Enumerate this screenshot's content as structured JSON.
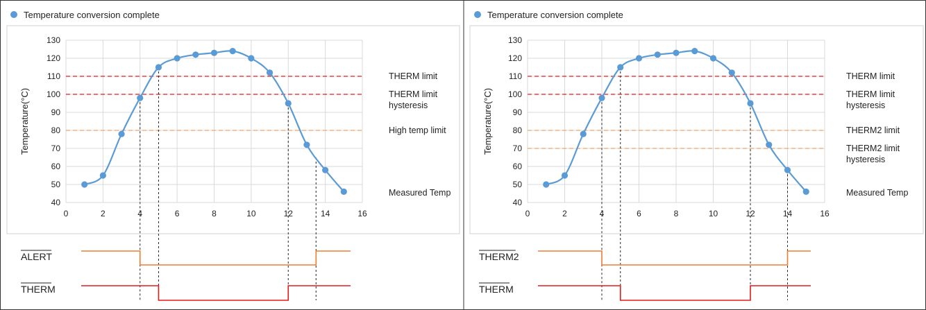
{
  "colors": {
    "series": "#5b9bd5",
    "therm_limit": "#e31a1c",
    "second_limit": "#f4a460",
    "alert_signal": "#ed7d31",
    "therm_signal": "#e31a1c",
    "grid": "#d9d9d9",
    "frame": "#333333"
  },
  "chart_data": [
    {
      "type": "scatter",
      "legend": "Temperature conversion complete",
      "ylabel": "Temperature(°C)",
      "xlim": [
        0,
        16
      ],
      "ylim": [
        40,
        130
      ],
      "xticks": [
        "0",
        "2",
        "4",
        "6",
        "8",
        "10",
        "12",
        "14",
        "16"
      ],
      "yticks": [
        "40",
        "50",
        "60",
        "70",
        "80",
        "90",
        "100",
        "110",
        "120",
        "130"
      ],
      "series": [
        {
          "name": "Measured Temp",
          "x": [
            1,
            2,
            3,
            4,
            5,
            6,
            7,
            8,
            9,
            10,
            11,
            12,
            13,
            14,
            15
          ],
          "y": [
            50,
            55,
            78,
            98,
            115,
            120,
            122,
            123,
            124,
            120,
            112,
            95,
            72,
            58,
            46
          ]
        }
      ],
      "reference_lines": [
        {
          "label": "THERM limit",
          "y": 110,
          "color": "#e31a1c"
        },
        {
          "label": "THERM limit\nhysteresis",
          "y": 100,
          "color": "#e31a1c"
        },
        {
          "label": "High temp limit",
          "y": 80,
          "color": "#f4a460"
        }
      ],
      "guide_x": [
        4,
        5,
        12,
        13.5
      ],
      "signals": [
        {
          "label": "ALERT",
          "low_from": 4,
          "low_to": 13.5,
          "color": "#ed7d31"
        },
        {
          "label": "THERM",
          "low_from": 5,
          "low_to": 12,
          "color": "#e31a1c"
        }
      ]
    },
    {
      "type": "scatter",
      "legend": "Temperature conversion complete",
      "ylabel": "Temperature(°C)",
      "xlim": [
        0,
        16
      ],
      "ylim": [
        40,
        130
      ],
      "xticks": [
        "0",
        "2",
        "4",
        "6",
        "8",
        "10",
        "12",
        "14",
        "16"
      ],
      "yticks": [
        "40",
        "50",
        "60",
        "70",
        "80",
        "90",
        "100",
        "110",
        "120",
        "130"
      ],
      "series": [
        {
          "name": "Measured Temp",
          "x": [
            1,
            2,
            3,
            4,
            5,
            6,
            7,
            8,
            9,
            10,
            11,
            12,
            13,
            14,
            15
          ],
          "y": [
            50,
            55,
            78,
            98,
            115,
            120,
            122,
            123,
            124,
            120,
            112,
            95,
            72,
            58,
            46
          ]
        }
      ],
      "reference_lines": [
        {
          "label": "THERM limit",
          "y": 110,
          "color": "#e31a1c"
        },
        {
          "label": "THERM limit\nhysteresis",
          "y": 100,
          "color": "#e31a1c"
        },
        {
          "label": "THERM2 limit",
          "y": 80,
          "color": "#f4a460"
        },
        {
          "label": "THERM2 limit\nhysteresis",
          "y": 70,
          "color": "#f4a460"
        }
      ],
      "guide_x": [
        4,
        5,
        12,
        14
      ],
      "signals": [
        {
          "label": "THERM2",
          "low_from": 4,
          "low_to": 14,
          "color": "#ed7d31"
        },
        {
          "label": "THERM",
          "low_from": 5,
          "low_to": 12,
          "color": "#e31a1c"
        }
      ]
    }
  ]
}
